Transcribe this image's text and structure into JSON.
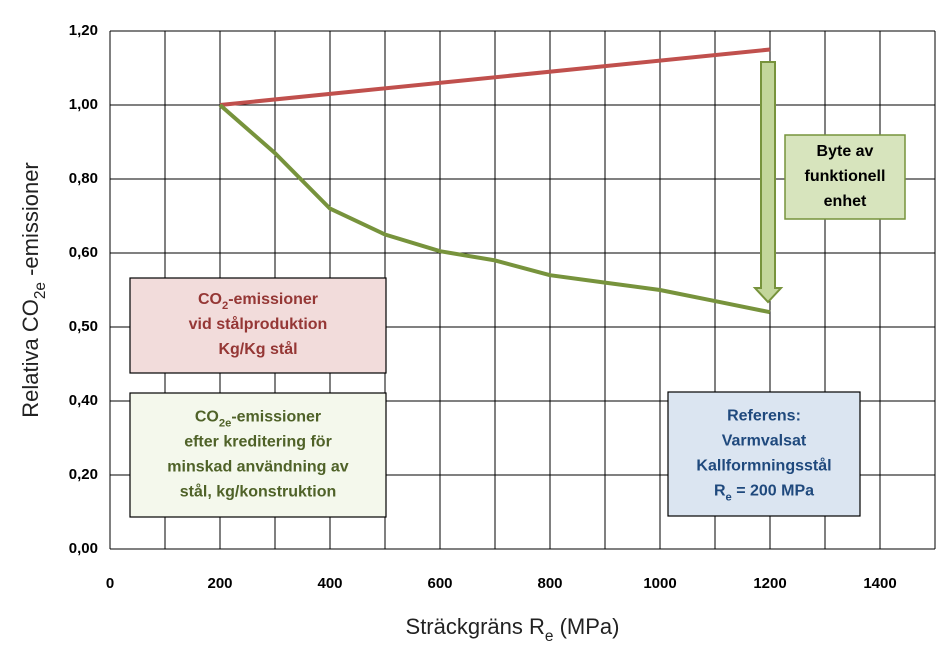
{
  "chart_data": {
    "type": "line",
    "x_label": [
      "Sträckgräns R",
      "e",
      " (MPa)"
    ],
    "y_label": [
      "Relativa CO",
      "2e",
      " -emissioner"
    ],
    "xlim": [
      0,
      1500
    ],
    "xticks": [
      0,
      200,
      400,
      600,
      800,
      1000,
      1200,
      1400
    ],
    "ylim": [
      0,
      1.2
    ],
    "yticks": [
      {
        "value": 0,
        "label": "0,00"
      },
      {
        "value": 0.2,
        "label": "0,20"
      },
      {
        "value": 0.4,
        "label": "0,40"
      },
      {
        "value": 0.5,
        "label": "0,50"
      },
      {
        "value": 0.6,
        "label": "0,60"
      },
      {
        "value": 0.8,
        "label": "0,80"
      },
      {
        "value": 1.0,
        "label": "1,00"
      },
      {
        "value": 1.2,
        "label": "1,20"
      }
    ],
    "grid": true,
    "series": [
      {
        "color": "#c0504d",
        "x": [
          200,
          1200
        ],
        "values": [
          1.0,
          1.15
        ]
      },
      {
        "color": "#77933c",
        "x": [
          200,
          300,
          400,
          500,
          600,
          700,
          800,
          900,
          1000,
          1100,
          1200
        ],
        "values": [
          1.0,
          0.87,
          0.72,
          0.65,
          0.605,
          0.59,
          0.57,
          0.56,
          0.55,
          0.535,
          0.52
        ]
      }
    ],
    "annotations": [
      {
        "lines": [
          [
            "CO",
            "2",
            "-emissioner"
          ],
          [
            "vid stålproduktion"
          ],
          [
            "Kg/Kg stål"
          ]
        ]
      },
      {
        "lines": [
          [
            "CO",
            "2e",
            "-emissioner"
          ],
          [
            "efter kreditering för"
          ],
          [
            "minskad användning av"
          ],
          [
            "stål, kg/konstruktion"
          ]
        ]
      },
      {
        "lines": [
          [
            "Referens:"
          ],
          [
            "Varmvalsat"
          ],
          [
            "Kallformningsstål"
          ],
          [
            "R",
            "e",
            " = 200 MPa"
          ]
        ]
      },
      {
        "lines": [
          [
            "Byte av"
          ],
          [
            "funktionell"
          ],
          [
            "enhet"
          ]
        ]
      }
    ]
  }
}
